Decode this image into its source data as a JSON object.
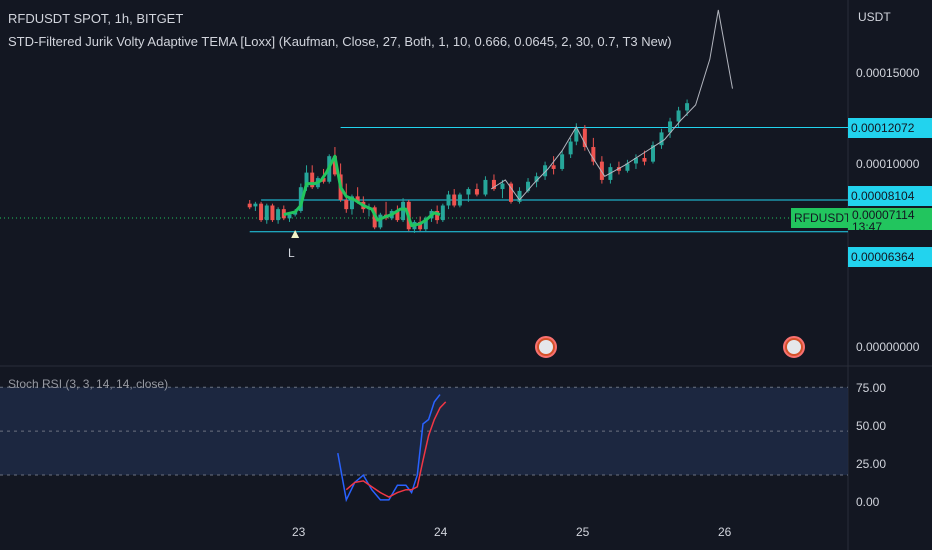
{
  "legend": {
    "title": "RFDUSDT SPOT, 1h, BITGET",
    "indicator": "STD-Filtered Jurik Volty Adaptive TEMA [Loxx] (Kaufman, Close, 27, Both, 1, 10, 0.666, 0.0645, 2, 30, 0.7, T3 New)",
    "stoch": "Stoch RSI (3, 3, 14, 14, close)"
  },
  "price_axis": {
    "currency": "USDT",
    "ticks": [
      "0.00015000",
      "0.00010000",
      "0.00000000"
    ],
    "levels": [
      {
        "label": "0.00012072",
        "value": 0.00012072
      },
      {
        "label": "0.00008104",
        "value": 8.104e-05
      },
      {
        "label": "0.00006364",
        "value": 6.364e-05
      }
    ],
    "last": {
      "symbol": "RFDUSDT",
      "price": "0.00007114",
      "countdown": "13:47"
    }
  },
  "stoch_axis": {
    "ticks": [
      "75.00",
      "50.00",
      "25.00",
      "0.00"
    ]
  },
  "time_axis": {
    "ticks": [
      "23",
      "24",
      "25",
      "26"
    ]
  },
  "signal": {
    "marker": "L"
  },
  "colors": {
    "background": "#131722",
    "up": "#26a69a",
    "down": "#ef5350",
    "signal_line": "#22c55e",
    "level_line": "#22d3ee",
    "stoch_k": "#2962ff",
    "stoch_d": "#f23645"
  },
  "chart_data": [
    {
      "type": "candlestick",
      "title": "RFDUSDT SPOT, 1h, BITGET",
      "ylabel": "USDT",
      "ylim": [
        0,
        0.000185
      ],
      "x_ticks": [
        "23",
        "24",
        "25",
        "26"
      ],
      "candles": [
        [
          22.66,
          7.9e-05,
          8.1e-05,
          7.6e-05,
          7.7e-05
        ],
        [
          22.7,
          7.75e-05,
          8e-05,
          7.5e-05,
          7.9e-05
        ],
        [
          22.74,
          7.9e-05,
          8e-05,
          6.9e-05,
          7e-05
        ],
        [
          22.78,
          7e-05,
          7.9e-05,
          6.8e-05,
          7.8e-05
        ],
        [
          22.82,
          7.8e-05,
          7.9e-05,
          6.9e-05,
          7e-05
        ],
        [
          22.86,
          7e-05,
          7.7e-05,
          6.8e-05,
          7.6e-05
        ],
        [
          22.9,
          7.6e-05,
          7.8e-05,
          7e-05,
          7.1e-05
        ],
        [
          22.94,
          7.1e-05,
          7.4e-05,
          6.9e-05,
          7.3e-05
        ],
        [
          22.98,
          7.3e-05,
          7.6e-05,
          7.2e-05,
          7.5e-05
        ],
        [
          23.02,
          7.5e-05,
          9e-05,
          7.4e-05,
          8.8e-05
        ],
        [
          23.06,
          8.8e-05,
          0.0001,
          8.6e-05,
          9.6e-05
        ],
        [
          23.1,
          9.6e-05,
          0.0001,
          8.7e-05,
          8.8e-05
        ],
        [
          23.14,
          8.8e-05,
          9.4e-05,
          8.7e-05,
          9.3e-05
        ],
        [
          23.18,
          9.3e-05,
          9.8e-05,
          9e-05,
          9.1e-05
        ],
        [
          23.22,
          9.1e-05,
          0.000106,
          9e-05,
          0.000105
        ],
        [
          23.26,
          0.000105,
          0.00011,
          9.4e-05,
          9.5e-05
        ],
        [
          23.3,
          9.5e-05,
          0.000101,
          8e-05,
          8.1e-05
        ],
        [
          23.34,
          8.1e-05,
          9e-05,
          7.4e-05,
          7.6e-05
        ],
        [
          23.38,
          7.6e-05,
          8.4e-05,
          7.3e-05,
          8.3e-05
        ],
        [
          23.42,
          8.3e-05,
          8.8e-05,
          7.9e-05,
          8e-05
        ],
        [
          23.46,
          8e-05,
          8.3e-05,
          7.4e-05,
          7.6e-05
        ],
        [
          23.5,
          7.6e-05,
          7.9e-05,
          7.2e-05,
          7.7e-05
        ],
        [
          23.54,
          7.7e-05,
          7.8e-05,
          6.5e-05,
          6.6e-05
        ],
        [
          23.58,
          6.6e-05,
          7.4e-05,
          6.5e-05,
          7.3e-05
        ],
        [
          23.62,
          7.3e-05,
          8e-05,
          7e-05,
          7.1e-05
        ],
        [
          23.66,
          7.1e-05,
          7.6e-05,
          7e-05,
          7.5e-05
        ],
        [
          23.7,
          7.5e-05,
          7.8e-05,
          6.9e-05,
          7e-05
        ],
        [
          23.74,
          7e-05,
          8.2e-05,
          6.9e-05,
          8e-05
        ],
        [
          23.78,
          8e-05,
          8.1e-05,
          6.4e-05,
          6.5e-05
        ],
        [
          23.82,
          6.5e-05,
          7e-05,
          6.3e-05,
          6.9e-05
        ],
        [
          23.86,
          6.9e-05,
          7.2e-05,
          6.4e-05,
          6.5e-05
        ],
        [
          23.9,
          6.5e-05,
          7.2e-05,
          6.4e-05,
          7.1e-05
        ],
        [
          23.94,
          7.1e-05,
          7.6e-05,
          6.9e-05,
          7.5e-05
        ],
        [
          23.98,
          7.5e-05,
          7.8e-05,
          6.8e-05,
          7e-05
        ],
        [
          24.02,
          7e-05,
          7.9e-05,
          6.9e-05,
          7.8e-05
        ],
        [
          24.06,
          7.8e-05,
          8.6e-05,
          7.6e-05,
          8.4e-05
        ],
        [
          24.1,
          8.4e-05,
          8.7e-05,
          7.7e-05,
          7.8e-05
        ],
        [
          24.14,
          7.8e-05,
          8.5e-05,
          7.7e-05,
          8.4e-05
        ],
        [
          24.2,
          8.4e-05,
          8.8e-05,
          8e-05,
          8.7e-05
        ],
        [
          24.26,
          8.7e-05,
          9e-05,
          8.3e-05,
          8.4e-05
        ],
        [
          24.32,
          8.4e-05,
          9.4e-05,
          8.3e-05,
          9.2e-05
        ],
        [
          24.38,
          9.2e-05,
          9.5e-05,
          8.6e-05,
          8.7e-05
        ],
        [
          24.44,
          8.7e-05,
          9.2e-05,
          8.2e-05,
          9e-05
        ],
        [
          24.5,
          9e-05,
          9.1e-05,
          7.9e-05,
          8e-05
        ],
        [
          24.56,
          8e-05,
          8.8e-05,
          7.9e-05,
          8.6e-05
        ],
        [
          24.62,
          8.6e-05,
          9.3e-05,
          8.5e-05,
          9.1e-05
        ],
        [
          24.68,
          9.1e-05,
          9.6e-05,
          8.8e-05,
          9.4e-05
        ],
        [
          24.74,
          9.4e-05,
          0.000102,
          9.2e-05,
          0.0001
        ],
        [
          24.8,
          0.0001,
          0.000105,
          9.5e-05,
          9.8e-05
        ],
        [
          24.86,
          9.8e-05,
          0.000108,
          9.7e-05,
          0.000106
        ],
        [
          24.92,
          0.000106,
          0.000115,
          0.000104,
          0.000113
        ],
        [
          24.96,
          0.000113,
          0.000123,
          0.000111,
          0.00012
        ],
        [
          25.02,
          0.00012,
          0.000122,
          0.000108,
          0.00011
        ],
        [
          25.08,
          0.00011,
          0.000115,
          0.0001,
          0.000102
        ],
        [
          25.14,
          0.000102,
          0.000105,
          9e-05,
          9.2e-05
        ],
        [
          25.2,
          9.2e-05,
          0.000101,
          9e-05,
          9.9e-05
        ],
        [
          25.26,
          9.9e-05,
          0.000102,
          9.5e-05,
          9.7e-05
        ],
        [
          25.32,
          9.7e-05,
          0.000103,
          9.6e-05,
          0.000101
        ],
        [
          25.38,
          0.000101,
          0.000106,
          9.8e-05,
          0.000104
        ],
        [
          25.44,
          0.000104,
          0.000108,
          0.0001,
          0.000102
        ],
        [
          25.5,
          0.000102,
          0.000113,
          0.000101,
          0.000111
        ],
        [
          25.56,
          0.000111,
          0.00012,
          0.000109,
          0.000118
        ],
        [
          25.62,
          0.000118,
          0.000126,
          0.000115,
          0.000124
        ],
        [
          25.68,
          0.000124,
          0.000132,
          0.000121,
          0.00013
        ],
        [
          25.74,
          0.00013,
          0.000136,
          0.000127,
          0.000134
        ]
      ],
      "signal_line": [
        [
          22.9,
          7.3e-05
        ],
        [
          22.98,
          7.45e-05
        ],
        [
          23.02,
          7.8e-05
        ],
        [
          23.06,
          9e-05
        ],
        [
          23.12,
          9e-05
        ],
        [
          23.16,
          9.15e-05
        ],
        [
          23.2,
          9.6e-05
        ],
        [
          23.26,
          0.000105
        ],
        [
          23.3,
          8.8e-05
        ],
        [
          23.34,
          8.3e-05
        ],
        [
          23.4,
          8.1e-05
        ],
        [
          23.46,
          7.8e-05
        ],
        [
          23.52,
          7.6e-05
        ],
        [
          23.56,
          7e-05
        ],
        [
          23.62,
          7.2e-05
        ],
        [
          23.66,
          7.3e-05
        ],
        [
          23.72,
          7.6e-05
        ],
        [
          23.76,
          7.6e-05
        ],
        [
          23.8,
          6.7e-05
        ],
        [
          23.86,
          6.8e-05
        ],
        [
          23.9,
          7e-05
        ],
        [
          23.96,
          7.4e-05
        ],
        [
          24.0,
          7.3e-05
        ]
      ],
      "projection_line": [
        [
          24.36,
          8.7e-05
        ],
        [
          24.46,
          9.2e-05
        ],
        [
          24.56,
          8.1e-05
        ],
        [
          24.66,
          9e-05
        ],
        [
          24.76,
          9.8e-05
        ],
        [
          24.86,
          0.000108
        ],
        [
          24.96,
          0.000121
        ],
        [
          25.06,
          0.000106
        ],
        [
          25.16,
          9.4e-05
        ],
        [
          25.3,
          0.0001
        ],
        [
          25.44,
          0.000107
        ],
        [
          25.58,
          0.000114
        ],
        [
          25.7,
          0.000125
        ],
        [
          25.8,
          0.000133
        ],
        [
          25.9,
          0.000158
        ],
        [
          25.96,
          0.000185
        ],
        [
          26.06,
          0.000142
        ]
      ],
      "levels": [
        {
          "label": "0.00012072",
          "value": 0.00012072,
          "from": 23.3
        },
        {
          "label": "0.00008104",
          "value": 8.104e-05,
          "from": 22.74
        },
        {
          "label": "0.00006364",
          "value": 6.364e-05,
          "from": 22.66
        }
      ],
      "last_price": 7.114e-05,
      "signal_marker": {
        "x": 22.98,
        "label": "L"
      }
    },
    {
      "type": "line",
      "title": "Stoch RSI (3, 3, 14, 14, close)",
      "ylim": [
        -8,
        85
      ],
      "y_ticks": [
        0,
        25,
        50,
        75
      ],
      "bands": [
        20,
        80
      ],
      "series": [
        {
          "color": "#2962ff",
          "points": [
            [
              23.28,
              35
            ],
            [
              23.34,
              3
            ],
            [
              23.4,
              15
            ],
            [
              23.46,
              20
            ],
            [
              23.52,
              10
            ],
            [
              23.58,
              3
            ],
            [
              23.64,
              3
            ],
            [
              23.7,
              13
            ],
            [
              23.76,
              13
            ],
            [
              23.8,
              8
            ],
            [
              23.84,
              20
            ],
            [
              23.88,
              55
            ],
            [
              23.92,
              58
            ],
            [
              23.96,
              70
            ],
            [
              24.0,
              75
            ]
          ]
        },
        {
          "color": "#f23645",
          "points": [
            [
              23.34,
              10
            ],
            [
              23.4,
              15
            ],
            [
              23.46,
              16
            ],
            [
              23.52,
              12
            ],
            [
              23.58,
              8
            ],
            [
              23.64,
              5
            ],
            [
              23.7,
              8
            ],
            [
              23.76,
              10
            ],
            [
              23.8,
              10
            ],
            [
              23.84,
              12
            ],
            [
              23.88,
              30
            ],
            [
              23.92,
              47
            ],
            [
              23.96,
              58
            ],
            [
              24.0,
              66
            ],
            [
              24.04,
              70
            ]
          ]
        }
      ]
    }
  ]
}
